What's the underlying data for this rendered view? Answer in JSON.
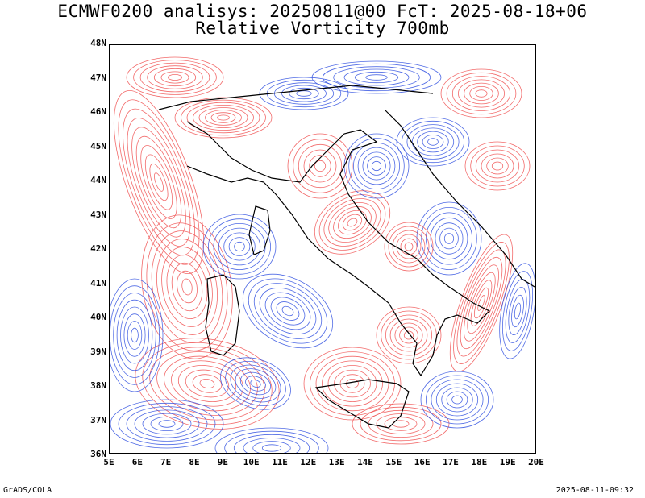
{
  "header": {
    "title_line1": "ECMWF0200 analisys: 20250811@00 FcT: 2025-08-18+06",
    "title_line2": "Relative Vorticity 700mb"
  },
  "map": {
    "lon_range": [
      5,
      20
    ],
    "lat_range": [
      36,
      48
    ],
    "lat_labels": [
      "48N",
      "47N",
      "46N",
      "45N",
      "44N",
      "43N",
      "42N",
      "41N",
      "40N",
      "39N",
      "38N",
      "37N",
      "36N"
    ],
    "lon_labels": [
      "5E",
      "6E",
      "7E",
      "8E",
      "9E",
      "10E",
      "11E",
      "12E",
      "13E",
      "14E",
      "15E",
      "16E",
      "17E",
      "18E",
      "19E",
      "20E"
    ],
    "colors": {
      "positive_vorticity": "#f05050",
      "negative_vorticity": "#3050e0",
      "coastline": "#000000",
      "border": "#000000"
    }
  },
  "footer": {
    "left": "GrADS/COLA",
    "right": "2025-08-11-09:32"
  }
}
